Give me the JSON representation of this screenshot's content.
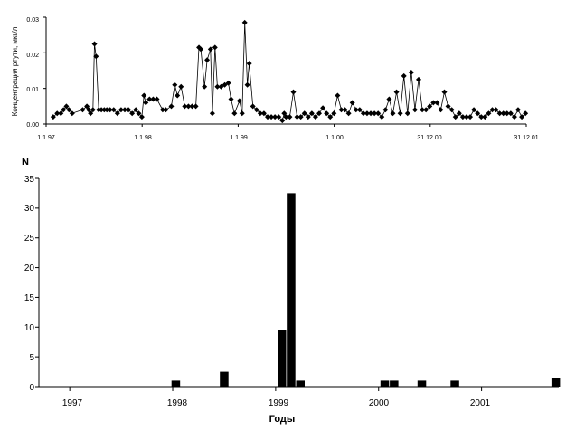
{
  "chart_data": [
    {
      "type": "line",
      "ylabel": "Концентрация ртути, мкг/л",
      "xlabel": "",
      "ylim": [
        0,
        0.03
      ],
      "y_ticks": [
        "0.00",
        "0.01",
        "0.02",
        "0.03"
      ],
      "y_tick_values": [
        0,
        0.01,
        0.02,
        0.03
      ],
      "x_ticks": [
        "1.1.97",
        "1.1.98",
        "1.1.99",
        "1.1.00",
        "31.12.00",
        "31.12.01"
      ],
      "x_tick_values": [
        "1997-01-01",
        "1998-01-01",
        "1999-01-01",
        "2000-01-01",
        "2000-12-31",
        "2001-12-31"
      ],
      "xlim": [
        "1997-01-01",
        "2001-12-31"
      ],
      "marker": "diamond",
      "series": [
        {
          "x": [
            "1997-01-28",
            "1997-02-12",
            "1997-02-26",
            "1997-03-08",
            "1997-03-19",
            "1997-03-29",
            "1997-04-10",
            "1997-05-20",
            "1997-06-05",
            "1997-06-12",
            "1997-06-19",
            "1997-06-28",
            "1997-07-04",
            "1997-07-10",
            "1997-07-20",
            "1997-07-30",
            "1997-08-10",
            "1997-08-20",
            "1997-09-01",
            "1997-09-15",
            "1997-09-29",
            "1997-10-13",
            "1997-10-27",
            "1997-11-10",
            "1997-11-24",
            "1997-12-08",
            "1997-12-19",
            "1997-12-31",
            "1998-01-08",
            "1998-01-15",
            "1998-01-29",
            "1998-02-12",
            "1998-02-26",
            "1998-03-20",
            "1998-04-01",
            "1998-04-22",
            "1998-05-05",
            "1998-05-15",
            "1998-05-29",
            "1998-06-12",
            "1998-06-26",
            "1998-07-10",
            "1998-07-24",
            "1998-08-05",
            "1998-08-12",
            "1998-08-26",
            "1998-09-05",
            "1998-09-18",
            "1998-09-25",
            "1998-10-05",
            "1998-10-14",
            "1998-10-28",
            "1998-11-11",
            "1998-11-25",
            "1998-12-05",
            "1998-12-18",
            "1999-01-06",
            "1999-01-16",
            "1999-01-26",
            "1999-02-05",
            "1999-02-12",
            "1999-02-26",
            "1999-03-12",
            "1999-03-26",
            "1999-04-09",
            "1999-04-23",
            "1999-05-07",
            "1999-05-21",
            "1999-06-04",
            "1999-06-18",
            "1999-06-25",
            "1999-07-02",
            "1999-07-16",
            "1999-07-30",
            "1999-08-13",
            "1999-08-27",
            "1999-09-10",
            "1999-09-24",
            "1999-10-08",
            "1999-10-22",
            "1999-11-05",
            "1999-11-19",
            "1999-12-03",
            "1999-12-17",
            "1999-12-31",
            "2000-01-14",
            "2000-01-28",
            "2000-02-11",
            "2000-02-25",
            "2000-03-10",
            "2000-03-24",
            "2000-04-07",
            "2000-04-21",
            "2000-05-05",
            "2000-05-19",
            "2000-06-02",
            "2000-06-16",
            "2000-06-30",
            "2000-07-14",
            "2000-07-28",
            "2000-08-11",
            "2000-08-25",
            "2000-09-08",
            "2000-09-22",
            "2000-10-06",
            "2000-10-20",
            "2000-11-03",
            "2000-11-17",
            "2000-12-01",
            "2000-12-15",
            "2000-12-29",
            "2001-01-12",
            "2001-01-26",
            "2001-02-09",
            "2001-02-23",
            "2001-03-09",
            "2001-03-23",
            "2001-04-06",
            "2001-04-20",
            "2001-05-04",
            "2001-05-18",
            "2001-06-01",
            "2001-06-15",
            "2001-06-29",
            "2001-07-13",
            "2001-07-27",
            "2001-08-10",
            "2001-08-24",
            "2001-09-07",
            "2001-09-21",
            "2001-10-05",
            "2001-10-19",
            "2001-11-02",
            "2001-11-16",
            "2001-11-30",
            "2001-12-14",
            "2001-12-28"
          ],
          "y": [
            0.002,
            0.003,
            0.003,
            0.004,
            0.005,
            0.004,
            0.003,
            0.004,
            0.005,
            0.004,
            0.003,
            0.004,
            0.0225,
            0.019,
            0.004,
            0.004,
            0.004,
            0.004,
            0.004,
            0.004,
            0.003,
            0.004,
            0.004,
            0.004,
            0.003,
            0.004,
            0.003,
            0.002,
            0.008,
            0.006,
            0.007,
            0.007,
            0.007,
            0.004,
            0.004,
            0.005,
            0.011,
            0.008,
            0.0105,
            0.005,
            0.005,
            0.005,
            0.005,
            0.0215,
            0.021,
            0.0105,
            0.018,
            0.021,
            0.003,
            0.0215,
            0.0105,
            0.0105,
            0.011,
            0.0115,
            0.007,
            0.003,
            0.0065,
            0.003,
            0.0285,
            0.011,
            0.017,
            0.005,
            0.004,
            0.003,
            0.003,
            0.002,
            0.002,
            0.002,
            0.002,
            0.001,
            0.003,
            0.002,
            0.002,
            0.009,
            0.002,
            0.002,
            0.003,
            0.002,
            0.003,
            0.002,
            0.003,
            0.0045,
            0.003,
            0.002,
            0.003,
            0.008,
            0.004,
            0.004,
            0.003,
            0.006,
            0.004,
            0.004,
            0.003,
            0.003,
            0.003,
            0.003,
            0.003,
            0.002,
            0.004,
            0.007,
            0.003,
            0.009,
            0.003,
            0.0135,
            0.003,
            0.0145,
            0.004,
            0.0125,
            0.004,
            0.004,
            0.005,
            0.006,
            0.006,
            0.004,
            0.009,
            0.005,
            0.004,
            0.002,
            0.003,
            0.002,
            0.002,
            0.002,
            0.004,
            0.003,
            0.002,
            0.002,
            0.003,
            0.004,
            0.004,
            0.003,
            0.003,
            0.003,
            0.003,
            0.002,
            0.004,
            0.002,
            0.003
          ]
        }
      ]
    },
    {
      "type": "bar",
      "ylabel": "N",
      "xlabel": "Годы",
      "ylim": [
        0,
        35
      ],
      "y_ticks": [
        "0",
        "5",
        "10",
        "15",
        "20",
        "25",
        "30",
        "35"
      ],
      "y_tick_values": [
        0,
        5,
        10,
        15,
        20,
        25,
        30,
        35
      ],
      "x_ticks": [
        "1997",
        "1998",
        "1999",
        "2000",
        "2001"
      ],
      "x_tick_values": [
        1997,
        1998,
        1999,
        2000,
        2001
      ],
      "xlim": [
        1996.7,
        2001.75
      ],
      "bar_width_years": 0.083,
      "bars": [
        {
          "x": 1998.03,
          "value": 1
        },
        {
          "x": 1998.5,
          "value": 2.5
        },
        {
          "x": 1999.06,
          "value": 9.5
        },
        {
          "x": 1999.15,
          "value": 32.5
        },
        {
          "x": 1999.24,
          "value": 1
        },
        {
          "x": 2000.06,
          "value": 1
        },
        {
          "x": 2000.15,
          "value": 1
        },
        {
          "x": 2000.42,
          "value": 1
        },
        {
          "x": 2000.74,
          "value": 1
        },
        {
          "x": 2001.72,
          "value": 1.5
        }
      ]
    }
  ]
}
